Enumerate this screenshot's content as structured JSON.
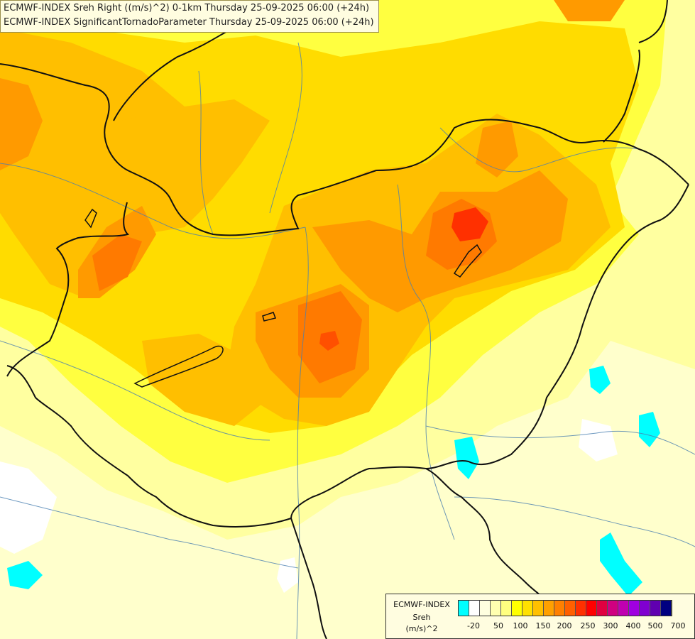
{
  "header": {
    "line1": "ECMWF-INDEX Sreh Right ((m/s)^2) 0-1km Thursday 25-09-2025 06:00 (+24h)",
    "line2": "ECMWF-INDEX SignificantTornadoParameter Thursday 25-09-2025 06:00 (+24h)"
  },
  "legend": {
    "title": "ECMWF-INDEX",
    "subtitle": "Sreh",
    "unit": "(m/s)^2",
    "colors": [
      "#00ffff",
      "#ffffff",
      "#ffffe0",
      "#ffffb0",
      "#ffff80",
      "#ffff00",
      "#ffe000",
      "#ffc000",
      "#ffa000",
      "#ff8000",
      "#ff6000",
      "#ff3000",
      "#ff0000",
      "#e00040",
      "#d00080",
      "#c000b0",
      "#a000e0",
      "#8000d0",
      "#6000b0",
      "#000080"
    ],
    "ticks": [
      "-20",
      "50",
      "100",
      "150",
      "200",
      "250",
      "300",
      "400",
      "500",
      "700"
    ]
  }
}
